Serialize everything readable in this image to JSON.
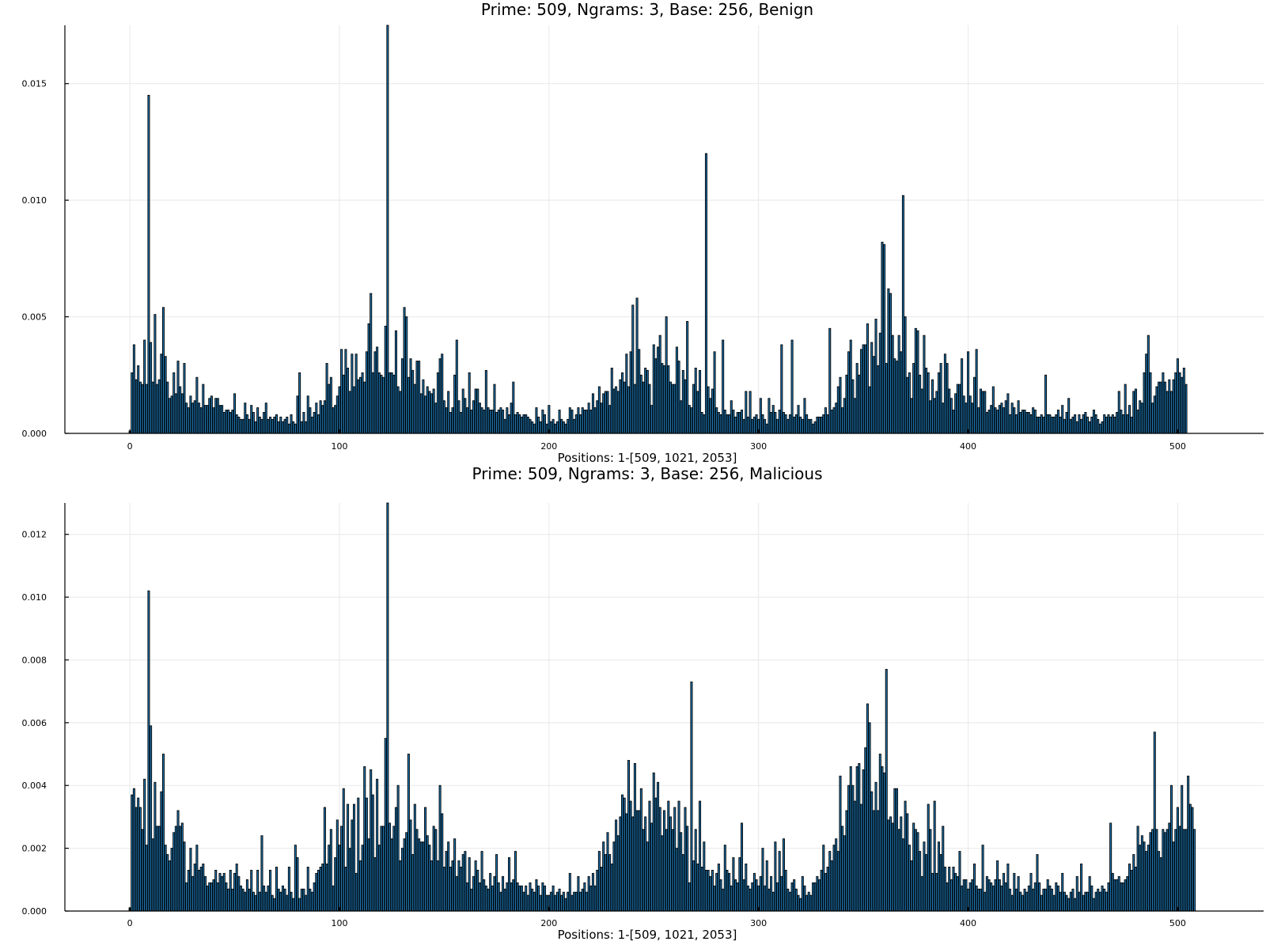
{
  "chart_data": [
    {
      "type": "bar",
      "title": "Prime: 509, Ngrams: 3, Base: 256, Benign",
      "xlabel": "Positions: 1-[509, 1021, 2053]",
      "ylabel": "",
      "xlim": [
        -31,
        541
      ],
      "ylim": [
        0,
        0.0175
      ],
      "xticks": [
        0,
        100,
        200,
        300,
        400,
        500
      ],
      "xtick_labels": [
        "0",
        "100",
        "200",
        "300",
        "400",
        "500"
      ],
      "yticks": [
        0,
        0.005,
        0.01,
        0.015
      ],
      "ytick_labels": [
        "0.000",
        "0.005",
        "0.010",
        "0.015"
      ],
      "grid": true,
      "legend": "none",
      "bar_color": "#1f78b4",
      "x_start": 0,
      "values": [
        0.0001,
        0.0026,
        0.0038,
        0.0023,
        0.0029,
        0.0022,
        0.0021,
        0.004,
        0.0021,
        0.0145,
        0.0039,
        0.0022,
        0.0051,
        0.0021,
        0.0023,
        0.0034,
        0.0054,
        0.0033,
        0.0022,
        0.0015,
        0.0016,
        0.0026,
        0.0017,
        0.0031,
        0.002,
        0.0017,
        0.003,
        0.0013,
        0.0011,
        0.0016,
        0.0013,
        0.0014,
        0.0024,
        0.0013,
        0.0011,
        0.0021,
        0.0012,
        0.0012,
        0.0015,
        0.0016,
        0.0011,
        0.0015,
        0.0015,
        0.0012,
        0.0012,
        0.0009,
        0.001,
        0.001,
        0.0009,
        0.001,
        0.0017,
        0.0008,
        0.0007,
        0.0006,
        0.0006,
        0.0013,
        0.0008,
        0.0006,
        0.0012,
        0.0009,
        0.0005,
        0.0011,
        0.0007,
        0.0006,
        0.0009,
        0.0013,
        0.0006,
        0.0007,
        0.0006,
        0.0007,
        0.0008,
        0.0005,
        0.0007,
        0.0005,
        0.0006,
        0.0007,
        0.0004,
        0.0008,
        0.0005,
        0.0004,
        0.0016,
        0.0026,
        0.0005,
        0.0009,
        0.0005,
        0.0016,
        0.0011,
        0.0007,
        0.0009,
        0.0013,
        0.0008,
        0.0014,
        0.0012,
        0.0014,
        0.003,
        0.0021,
        0.0024,
        0.0011,
        0.0012,
        0.0016,
        0.002,
        0.0036,
        0.0025,
        0.0036,
        0.0028,
        0.0018,
        0.0034,
        0.002,
        0.0034,
        0.0023,
        0.0024,
        0.0026,
        0.0022,
        0.0035,
        0.0047,
        0.006,
        0.0026,
        0.0035,
        0.0037,
        0.0026,
        0.0025,
        0.0024,
        0.0046,
        0.0175,
        0.0026,
        0.0026,
        0.0025,
        0.0044,
        0.002,
        0.0018,
        0.0032,
        0.0054,
        0.005,
        0.0024,
        0.0032,
        0.0027,
        0.0021,
        0.0031,
        0.0031,
        0.0017,
        0.0023,
        0.0016,
        0.002,
        0.0018,
        0.0017,
        0.0019,
        0.0013,
        0.0026,
        0.0032,
        0.0034,
        0.0014,
        0.0011,
        0.0018,
        0.0009,
        0.0011,
        0.0025,
        0.004,
        0.0014,
        0.0009,
        0.0019,
        0.0015,
        0.0011,
        0.0026,
        0.001,
        0.0014,
        0.0019,
        0.0019,
        0.0013,
        0.0011,
        0.001,
        0.0027,
        0.0011,
        0.001,
        0.001,
        0.0021,
        0.0009,
        0.001,
        0.0011,
        0.001,
        0.0006,
        0.0011,
        0.0008,
        0.0013,
        0.0022,
        0.0008,
        0.0009,
        0.0008,
        0.0007,
        0.0008,
        0.0008,
        0.0007,
        0.0006,
        0.0005,
        0.0004,
        0.0011,
        0.0007,
        0.0005,
        0.001,
        0.0008,
        0.0004,
        0.0012,
        0.0005,
        0.0006,
        0.0004,
        0.0005,
        0.001,
        0.0006,
        0.0005,
        0.0004,
        0.0006,
        0.0011,
        0.001,
        0.0006,
        0.0008,
        0.0011,
        0.0008,
        0.0011,
        0.001,
        0.001,
        0.0013,
        0.001,
        0.0017,
        0.0011,
        0.0014,
        0.002,
        0.0013,
        0.0017,
        0.0018,
        0.0018,
        0.0012,
        0.0028,
        0.0019,
        0.002,
        0.0018,
        0.0023,
        0.0026,
        0.0022,
        0.0034,
        0.002,
        0.0035,
        0.0055,
        0.0021,
        0.0058,
        0.0036,
        0.0025,
        0.0022,
        0.0028,
        0.0027,
        0.0021,
        0.0012,
        0.0038,
        0.0032,
        0.0037,
        0.0042,
        0.003,
        0.0029,
        0.005,
        0.0029,
        0.0022,
        0.0021,
        0.0021,
        0.0037,
        0.0031,
        0.0014,
        0.0027,
        0.0023,
        0.0048,
        0.0012,
        0.0011,
        0.0021,
        0.0028,
        0.0018,
        0.0027,
        0.0009,
        0.0008,
        0.012,
        0.002,
        0.0015,
        0.0019,
        0.0035,
        0.0011,
        0.0009,
        0.0008,
        0.004,
        0.001,
        0.0008,
        0.0008,
        0.0014,
        0.001,
        0.0007,
        0.0009,
        0.0009,
        0.001,
        0.0006,
        0.0018,
        0.0007,
        0.0018,
        0.0006,
        0.0007,
        0.0008,
        0.0006,
        0.0015,
        0.0008,
        0.0006,
        0.0004,
        0.0015,
        0.0009,
        0.0012,
        0.0009,
        0.0006,
        0.001,
        0.0038,
        0.0009,
        0.0008,
        0.0006,
        0.0008,
        0.004,
        0.0007,
        0.0008,
        0.0012,
        0.0007,
        0.0006,
        0.0015,
        0.0008,
        0.0006,
        0.0006,
        0.0004,
        0.0005,
        0.0007,
        0.0007,
        0.0007,
        0.0008,
        0.0011,
        0.0008,
        0.0045,
        0.001,
        0.0011,
        0.0013,
        0.002,
        0.0024,
        0.0011,
        0.0015,
        0.0025,
        0.0035,
        0.004,
        0.0023,
        0.0015,
        0.003,
        0.0025,
        0.0036,
        0.0038,
        0.0038,
        0.0047,
        0.002,
        0.0039,
        0.0033,
        0.0049,
        0.0029,
        0.0043,
        0.0082,
        0.0081,
        0.003,
        0.0062,
        0.006,
        0.0042,
        0.0032,
        0.0031,
        0.0042,
        0.0035,
        0.0102,
        0.005,
        0.0024,
        0.0026,
        0.0015,
        0.003,
        0.0045,
        0.0044,
        0.0025,
        0.0019,
        0.0042,
        0.0028,
        0.0026,
        0.0014,
        0.0023,
        0.0015,
        0.0018,
        0.0026,
        0.003,
        0.0013,
        0.0034,
        0.003,
        0.0019,
        0.0015,
        0.001,
        0.0017,
        0.0021,
        0.0021,
        0.0032,
        0.0016,
        0.0013,
        0.0035,
        0.0016,
        0.0013,
        0.0024,
        0.0036,
        0.0011,
        0.0019,
        0.0018,
        0.0018,
        0.0009,
        0.001,
        0.0012,
        0.002,
        0.0011,
        0.001,
        0.0012,
        0.0013,
        0.0011,
        0.0014,
        0.0017,
        0.0008,
        0.0013,
        0.0011,
        0.0008,
        0.0014,
        0.0009,
        0.001,
        0.001,
        0.0009,
        0.0009,
        0.0008,
        0.0011,
        0.001,
        0.0007,
        0.0007,
        0.0008,
        0.0007,
        0.0025,
        0.0008,
        0.0008,
        0.0007,
        0.0007,
        0.0008,
        0.001,
        0.0007,
        0.0012,
        0.0006,
        0.0009,
        0.0015,
        0.0006,
        0.0007,
        0.0008,
        0.0005,
        0.0008,
        0.0006,
        0.0008,
        0.0009,
        0.0007,
        0.0005,
        0.0007,
        0.001,
        0.0008,
        0.0006,
        0.0004,
        0.0005,
        0.0008,
        0.0007,
        0.0008,
        0.0007,
        0.0008,
        0.0007,
        0.0009,
        0.0018,
        0.001,
        0.0008,
        0.0021,
        0.0008,
        0.0012,
        0.0007,
        0.0018,
        0.0019,
        0.001,
        0.0014,
        0.0013,
        0.0026,
        0.0034,
        0.0042,
        0.0026,
        0.0013,
        0.0016,
        0.002,
        0.0022,
        0.0022,
        0.0026,
        0.0022,
        0.0018,
        0.0023,
        0.0018,
        0.0023,
        0.0026,
        0.0032,
        0.0026,
        0.0024,
        0.0028,
        0.0021
      ]
    },
    {
      "type": "bar",
      "title": "Prime: 509, Ngrams: 3, Base: 256, Malicious",
      "xlabel": "Positions: 1-[509, 1021, 2053]",
      "ylabel": "",
      "xlim": [
        -31,
        541
      ],
      "ylim": [
        0,
        0.013
      ],
      "xticks": [
        0,
        100,
        200,
        300,
        400,
        500
      ],
      "xtick_labels": [
        "0",
        "100",
        "200",
        "300",
        "400",
        "500"
      ],
      "yticks": [
        0,
        0.002,
        0.004,
        0.006,
        0.008,
        0.01,
        0.012
      ],
      "ytick_labels": [
        "0.000",
        "0.002",
        "0.004",
        "0.006",
        "0.008",
        "0.010",
        "0.012"
      ],
      "grid": true,
      "legend": "none",
      "bar_color": "#1f78b4",
      "x_start": 0,
      "values": [
        0.0001,
        0.0037,
        0.0039,
        0.0033,
        0.0036,
        0.0033,
        0.0026,
        0.0042,
        0.0021,
        0.0102,
        0.0059,
        0.0023,
        0.0041,
        0.0027,
        0.0027,
        0.0038,
        0.005,
        0.0021,
        0.0018,
        0.0016,
        0.002,
        0.0025,
        0.0027,
        0.0032,
        0.0027,
        0.0028,
        0.0022,
        0.0009,
        0.0013,
        0.002,
        0.0011,
        0.0015,
        0.0021,
        0.0013,
        0.0014,
        0.0015,
        0.0011,
        0.0008,
        0.0009,
        0.0009,
        0.001,
        0.0013,
        0.0009,
        0.0012,
        0.0011,
        0.0012,
        0.0009,
        0.0007,
        0.0013,
        0.0007,
        0.0012,
        0.0015,
        0.0011,
        0.0008,
        0.0007,
        0.0006,
        0.001,
        0.0007,
        0.0013,
        0.0006,
        0.0005,
        0.0013,
        0.0006,
        0.0024,
        0.0008,
        0.0006,
        0.0008,
        0.0013,
        0.0005,
        0.0004,
        0.0014,
        0.0007,
        0.0006,
        0.0008,
        0.0007,
        0.0005,
        0.0014,
        0.0006,
        0.0004,
        0.0021,
        0.0017,
        0.0004,
        0.0007,
        0.0007,
        0.0005,
        0.0014,
        0.0007,
        0.0006,
        0.0009,
        0.0012,
        0.0013,
        0.0014,
        0.0015,
        0.0033,
        0.0015,
        0.0021,
        0.0026,
        0.0008,
        0.0017,
        0.0029,
        0.0021,
        0.0027,
        0.0039,
        0.0014,
        0.0034,
        0.002,
        0.0029,
        0.0034,
        0.0012,
        0.0036,
        0.0016,
        0.0021,
        0.0046,
        0.0036,
        0.0023,
        0.0045,
        0.0037,
        0.0017,
        0.0042,
        0.0021,
        0.0027,
        0.0027,
        0.0055,
        0.013,
        0.0028,
        0.0023,
        0.0027,
        0.0033,
        0.004,
        0.0016,
        0.002,
        0.0023,
        0.0025,
        0.005,
        0.0029,
        0.0018,
        0.0034,
        0.0026,
        0.0023,
        0.0022,
        0.0022,
        0.0033,
        0.0024,
        0.0021,
        0.0016,
        0.0027,
        0.0026,
        0.0016,
        0.004,
        0.0031,
        0.0014,
        0.0019,
        0.0022,
        0.0014,
        0.0016,
        0.0023,
        0.0011,
        0.0016,
        0.0014,
        0.0018,
        0.0019,
        0.0009,
        0.0017,
        0.0007,
        0.0011,
        0.0016,
        0.0013,
        0.0009,
        0.0019,
        0.001,
        0.0008,
        0.0007,
        0.0012,
        0.0008,
        0.0011,
        0.0018,
        0.0009,
        0.0006,
        0.0011,
        0.0007,
        0.0009,
        0.0017,
        0.0009,
        0.001,
        0.0019,
        0.0009,
        0.0008,
        0.0008,
        0.0006,
        0.0008,
        0.0005,
        0.0009,
        0.0007,
        0.0006,
        0.001,
        0.0008,
        0.0005,
        0.0009,
        0.0008,
        0.0005,
        0.0005,
        0.0006,
        0.0008,
        0.0005,
        0.0006,
        0.0007,
        0.0005,
        0.0006,
        0.0004,
        0.0006,
        0.0012,
        0.0005,
        0.0006,
        0.0006,
        0.0011,
        0.0006,
        0.0007,
        0.0009,
        0.0006,
        0.0011,
        0.0008,
        0.0012,
        0.0008,
        0.0013,
        0.0019,
        0.0014,
        0.0022,
        0.0018,
        0.0025,
        0.0018,
        0.0015,
        0.0022,
        0.0029,
        0.0024,
        0.003,
        0.0037,
        0.0036,
        0.0031,
        0.0048,
        0.0035,
        0.003,
        0.0047,
        0.0032,
        0.0032,
        0.0039,
        0.0026,
        0.003,
        0.0022,
        0.0035,
        0.0028,
        0.0044,
        0.0036,
        0.0041,
        0.0033,
        0.0024,
        0.0032,
        0.0026,
        0.0035,
        0.003,
        0.0026,
        0.0033,
        0.002,
        0.0035,
        0.0025,
        0.0018,
        0.0033,
        0.0027,
        0.0009,
        0.0073,
        0.0016,
        0.0026,
        0.0015,
        0.0035,
        0.0014,
        0.0022,
        0.0013,
        0.0013,
        0.0011,
        0.0013,
        0.0008,
        0.0012,
        0.0015,
        0.001,
        0.0007,
        0.0021,
        0.0013,
        0.0012,
        0.0008,
        0.0017,
        0.001,
        0.0009,
        0.0017,
        0.0028,
        0.001,
        0.0015,
        0.0008,
        0.0007,
        0.0009,
        0.0012,
        0.001,
        0.0008,
        0.0011,
        0.002,
        0.0008,
        0.0016,
        0.0007,
        0.0011,
        0.0006,
        0.0022,
        0.0009,
        0.0019,
        0.0011,
        0.0023,
        0.0013,
        0.0007,
        0.0006,
        0.0009,
        0.001,
        0.0007,
        0.0005,
        0.0004,
        0.0011,
        0.0008,
        0.0005,
        0.0006,
        0.0005,
        0.0009,
        0.0009,
        0.0011,
        0.001,
        0.0013,
        0.0021,
        0.0012,
        0.0014,
        0.0019,
        0.0016,
        0.0021,
        0.0023,
        0.0019,
        0.0043,
        0.0027,
        0.0024,
        0.0032,
        0.004,
        0.0046,
        0.004,
        0.0035,
        0.0046,
        0.0047,
        0.0034,
        0.0045,
        0.0052,
        0.0066,
        0.006,
        0.0038,
        0.0032,
        0.0041,
        0.0032,
        0.005,
        0.0046,
        0.0044,
        0.0077,
        0.0029,
        0.003,
        0.0028,
        0.0039,
        0.0039,
        0.0026,
        0.003,
        0.0023,
        0.0035,
        0.0031,
        0.0021,
        0.0016,
        0.0028,
        0.0026,
        0.0025,
        0.0019,
        0.0011,
        0.0022,
        0.0018,
        0.0034,
        0.0026,
        0.0012,
        0.0035,
        0.0012,
        0.0022,
        0.0018,
        0.0027,
        0.0014,
        0.0009,
        0.0014,
        0.001,
        0.0014,
        0.0012,
        0.0011,
        0.0019,
        0.0008,
        0.001,
        0.001,
        0.0007,
        0.0009,
        0.001,
        0.0015,
        0.0008,
        0.0007,
        0.0007,
        0.0021,
        0.0006,
        0.0011,
        0.001,
        0.0009,
        0.0008,
        0.001,
        0.0016,
        0.001,
        0.0008,
        0.0012,
        0.0009,
        0.0015,
        0.0007,
        0.0005,
        0.0012,
        0.0007,
        0.0011,
        0.0006,
        0.0005,
        0.0007,
        0.0006,
        0.0008,
        0.0012,
        0.0007,
        0.0009,
        0.0018,
        0.0009,
        0.0005,
        0.0007,
        0.0007,
        0.001,
        0.0008,
        0.0007,
        0.0005,
        0.0009,
        0.0008,
        0.0006,
        0.0012,
        0.0006,
        0.0005,
        0.0004,
        0.0006,
        0.0007,
        0.0004,
        0.0011,
        0.0006,
        0.0015,
        0.0005,
        0.0006,
        0.0006,
        0.0011,
        0.0008,
        0.0004,
        0.0006,
        0.0007,
        0.0006,
        0.0008,
        0.0007,
        0.0006,
        0.0009,
        0.0028,
        0.0012,
        0.001,
        0.001,
        0.0011,
        0.0009,
        0.0009,
        0.001,
        0.0011,
        0.0015,
        0.0013,
        0.0018,
        0.0014,
        0.0027,
        0.0021,
        0.0024,
        0.0022,
        0.0019,
        0.0021,
        0.0025,
        0.0026,
        0.0057,
        0.0026,
        0.0019,
        0.0017,
        0.0026,
        0.0025,
        0.0026,
        0.0028,
        0.004,
        0.0022,
        0.0026,
        0.0033,
        0.0027,
        0.004,
        0.0026,
        0.0026,
        0.0043,
        0.0034,
        0.0033,
        0.0026
      ]
    }
  ]
}
